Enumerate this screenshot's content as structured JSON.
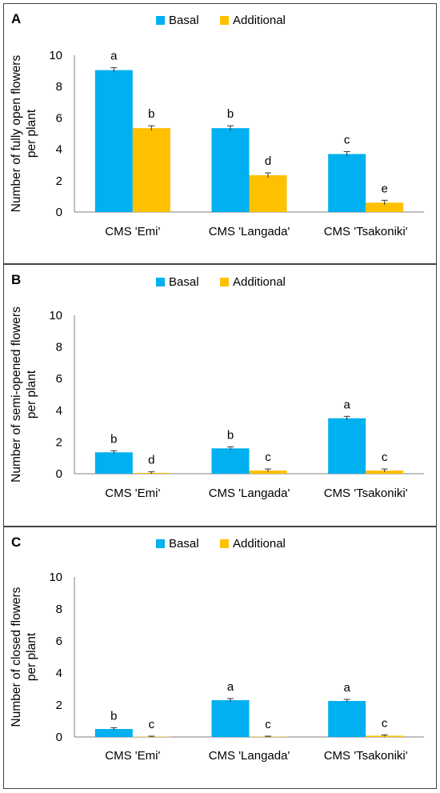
{
  "colors": {
    "basal": "#00B0F0",
    "additional": "#FFC000",
    "axis": "#7f7f7f",
    "error": "#333333"
  },
  "chart_data": [
    {
      "type": "bar",
      "panel_label": "A",
      "categories": [
        "CMS 'Emi'",
        "CMS 'Langada'",
        "CMS 'Tsakoniki'"
      ],
      "series": [
        {
          "name": "Basal",
          "values": [
            9.05,
            5.35,
            3.7
          ],
          "errors": [
            0.15,
            0.15,
            0.15
          ],
          "letters": [
            "a",
            "b",
            "c"
          ]
        },
        {
          "name": "Additional",
          "values": [
            5.35,
            2.35,
            0.6
          ],
          "errors": [
            0.15,
            0.15,
            0.15
          ],
          "letters": [
            "b",
            "d",
            "e"
          ]
        }
      ],
      "ylabel": [
        "Number of fully open flowers",
        "per plant"
      ],
      "ylim": [
        0,
        10
      ],
      "yticks": [
        "0",
        "2",
        "4",
        "6",
        "8",
        "10"
      ],
      "legend": "top-center",
      "grid": false
    },
    {
      "type": "bar",
      "panel_label": "B",
      "categories": [
        "CMS 'Emi'",
        "CMS 'Langada'",
        "CMS 'Tsakoniki'"
      ],
      "series": [
        {
          "name": "Basal",
          "values": [
            1.35,
            1.6,
            3.5
          ],
          "errors": [
            0.1,
            0.1,
            0.12
          ],
          "letters": [
            "b",
            "b",
            "a"
          ]
        },
        {
          "name": "Additional",
          "values": [
            0.05,
            0.2,
            0.2
          ],
          "errors": [
            0.07,
            0.1,
            0.1
          ],
          "letters": [
            "d",
            "c",
            "c"
          ]
        }
      ],
      "ylabel": [
        "Number of semi-opened flowers",
        "per plant"
      ],
      "ylim": [
        0,
        10
      ],
      "yticks": [
        "0",
        "2",
        "4",
        "6",
        "8",
        "10"
      ],
      "legend": "top-center",
      "grid": false
    },
    {
      "type": "bar",
      "panel_label": "C",
      "categories": [
        "CMS 'Emi'",
        "CMS 'Langada'",
        "CMS 'Tsakoniki'"
      ],
      "series": [
        {
          "name": "Basal",
          "values": [
            0.5,
            2.3,
            2.25
          ],
          "errors": [
            0.08,
            0.1,
            0.1
          ],
          "letters": [
            "b",
            "a",
            "a"
          ]
        },
        {
          "name": "Additional",
          "values": [
            0.02,
            0.02,
            0.08
          ],
          "errors": [
            0.03,
            0.03,
            0.05
          ],
          "letters": [
            "c",
            "c",
            "c"
          ]
        }
      ],
      "ylabel": [
        "Number of closed flowers",
        "per plant"
      ],
      "ylim": [
        0,
        10
      ],
      "yticks": [
        "0",
        "2",
        "4",
        "6",
        "8",
        "10"
      ],
      "legend": "top-center",
      "grid": false
    }
  ]
}
